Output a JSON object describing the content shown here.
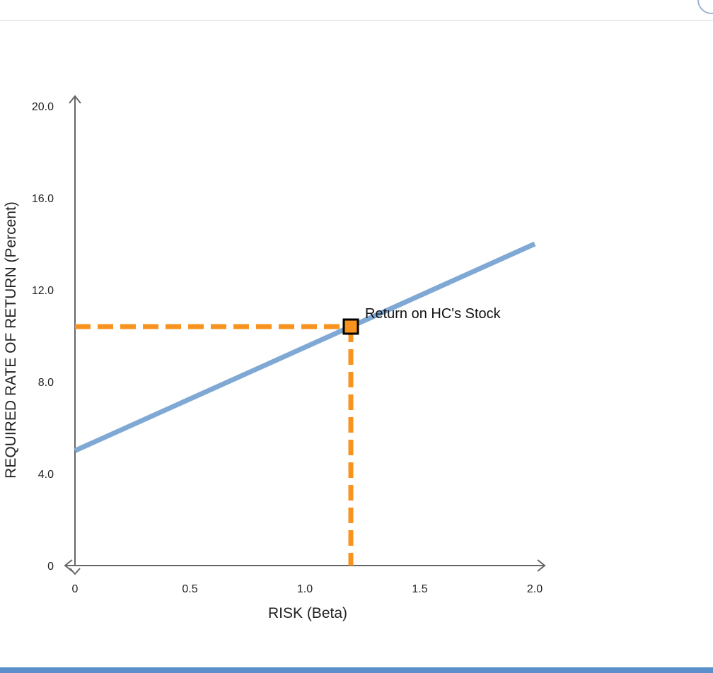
{
  "chart_data": {
    "type": "line",
    "xlabel": "RISK (Beta)",
    "ylabel": "REQUIRED RATE OF RETURN (Percent)",
    "xlim": [
      0,
      2.0
    ],
    "ylim": [
      0,
      20.0
    ],
    "x_ticks": [
      "0",
      "0.5",
      "1.0",
      "1.5",
      "2.0"
    ],
    "y_ticks": [
      "0",
      "4.0",
      "8.0",
      "12.0",
      "16.0",
      "20.0"
    ],
    "x_tick_values": [
      0,
      0.5,
      1.0,
      1.5,
      2.0
    ],
    "y_tick_values": [
      0,
      4.0,
      8.0,
      12.0,
      16.0,
      20.0
    ],
    "series": [
      {
        "x": [
          0,
          2.0
        ],
        "y": [
          5.0,
          14.0
        ],
        "color": "#7fa9d4"
      }
    ],
    "highlight_point": {
      "label": "Return on HC's Stock",
      "x": 1.2,
      "y": 10.4,
      "color": "#f7931e"
    },
    "grid": false,
    "axis_color": "#666666",
    "guide_line_style": "dashed"
  }
}
